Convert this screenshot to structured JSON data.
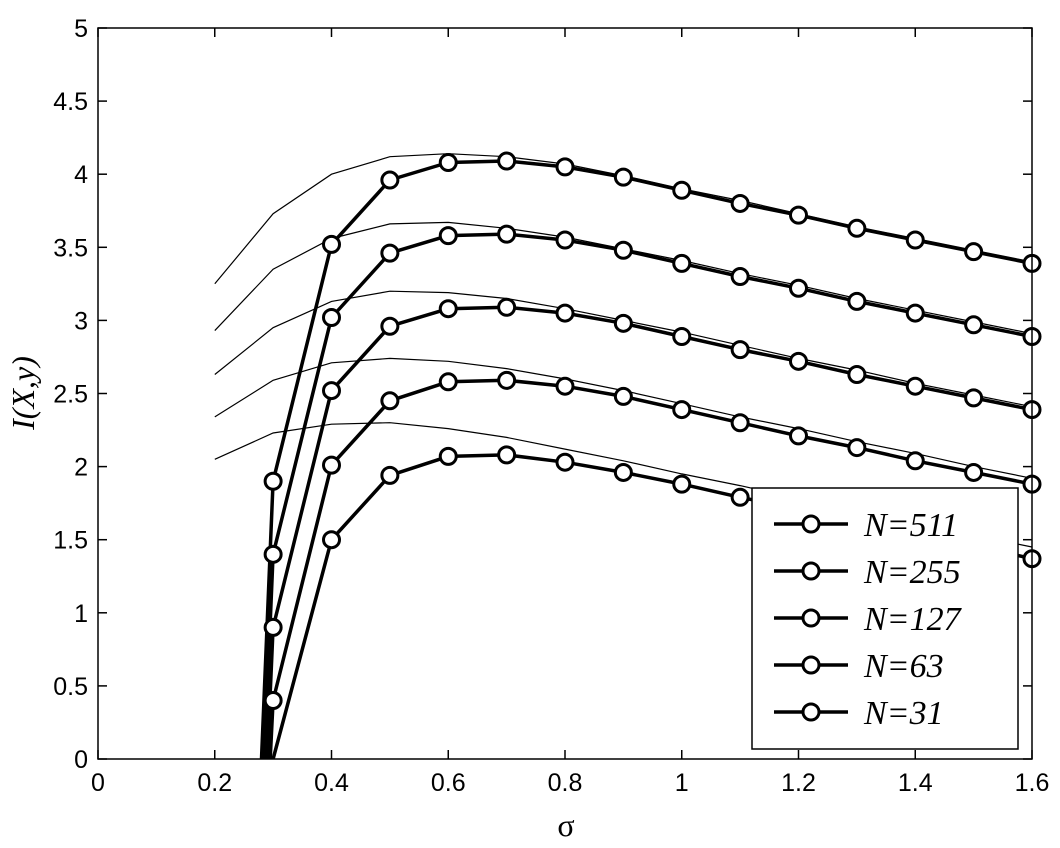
{
  "chart_data": {
    "type": "line",
    "xlabel": "σ",
    "ylabel": "I(X,y)",
    "xlim": [
      0,
      1.6
    ],
    "ylim": [
      0,
      5
    ],
    "xticks": [
      "0",
      "0.2",
      "0.4",
      "0.6",
      "0.8",
      "1",
      "1.2",
      "1.4",
      "1.6"
    ],
    "yticks": [
      "0",
      "0.5",
      "1",
      "1.5",
      "2",
      "2.5",
      "3",
      "3.5",
      "4",
      "4.5",
      "5"
    ],
    "grid": false,
    "legend_position": "bottom-right",
    "series": [
      {
        "name": "N=511",
        "style": "thick-circle-markers",
        "x": [
          0.28,
          0.3,
          0.4,
          0.5,
          0.6,
          0.7,
          0.8,
          0.9,
          1.0,
          1.1,
          1.2,
          1.3,
          1.4,
          1.5,
          1.6
        ],
        "y": [
          0.0,
          1.9,
          3.52,
          3.96,
          4.08,
          4.09,
          4.05,
          3.98,
          3.89,
          3.8,
          3.72,
          3.63,
          3.55,
          3.47,
          3.39
        ]
      },
      {
        "name": "N=255",
        "style": "thick-circle-markers",
        "x": [
          0.285,
          0.3,
          0.4,
          0.5,
          0.6,
          0.7,
          0.8,
          0.9,
          1.0,
          1.1,
          1.2,
          1.3,
          1.4,
          1.5,
          1.6
        ],
        "y": [
          0.0,
          1.4,
          3.02,
          3.46,
          3.58,
          3.59,
          3.55,
          3.48,
          3.39,
          3.3,
          3.22,
          3.13,
          3.05,
          2.97,
          2.89
        ]
      },
      {
        "name": "N=127",
        "style": "thick-circle-markers",
        "x": [
          0.29,
          0.3,
          0.4,
          0.5,
          0.6,
          0.7,
          0.8,
          0.9,
          1.0,
          1.1,
          1.2,
          1.3,
          1.4,
          1.5,
          1.6
        ],
        "y": [
          0.0,
          0.9,
          2.52,
          2.96,
          3.08,
          3.09,
          3.05,
          2.98,
          2.89,
          2.8,
          2.72,
          2.63,
          2.55,
          2.47,
          2.39
        ]
      },
      {
        "name": "N=63",
        "style": "thick-circle-markers",
        "x": [
          0.295,
          0.3,
          0.4,
          0.5,
          0.6,
          0.7,
          0.8,
          0.9,
          1.0,
          1.1,
          1.2,
          1.3,
          1.4,
          1.5,
          1.6
        ],
        "y": [
          0.0,
          0.4,
          2.01,
          2.45,
          2.58,
          2.59,
          2.55,
          2.48,
          2.39,
          2.3,
          2.21,
          2.13,
          2.04,
          1.96,
          1.88
        ]
      },
      {
        "name": "N=31",
        "style": "thick-circle-markers",
        "x": [
          0.3,
          0.4,
          0.5,
          0.6,
          0.7,
          0.8,
          0.9,
          1.0,
          1.1,
          1.2,
          1.3,
          1.4,
          1.5,
          1.6
        ],
        "y": [
          0.0,
          1.5,
          1.94,
          2.07,
          2.08,
          2.03,
          1.96,
          1.88,
          1.79,
          1.71,
          1.62,
          1.54,
          1.46,
          1.37
        ]
      },
      {
        "style": "thin-line",
        "x": [
          0.2,
          0.3,
          0.4,
          0.5,
          0.6,
          0.7,
          0.8,
          0.9,
          1.0,
          1.1,
          1.2,
          1.3,
          1.4,
          1.5,
          1.6
        ],
        "y": [
          3.25,
          3.73,
          4.0,
          4.12,
          4.14,
          4.12,
          4.07,
          3.99,
          3.9,
          3.82,
          3.73,
          3.64,
          3.56,
          3.48,
          3.4
        ]
      },
      {
        "style": "thin-line",
        "x": [
          0.2,
          0.3,
          0.4,
          0.5,
          0.6,
          0.7,
          0.8,
          0.9,
          1.0,
          1.1,
          1.2,
          1.3,
          1.4,
          1.5,
          1.6
        ],
        "y": [
          2.93,
          3.35,
          3.56,
          3.66,
          3.67,
          3.63,
          3.57,
          3.49,
          3.41,
          3.32,
          3.24,
          3.15,
          3.07,
          2.99,
          2.91
        ]
      },
      {
        "style": "thin-line",
        "x": [
          0.2,
          0.3,
          0.4,
          0.5,
          0.6,
          0.7,
          0.8,
          0.9,
          1.0,
          1.1,
          1.2,
          1.3,
          1.4,
          1.5,
          1.6
        ],
        "y": [
          2.63,
          2.95,
          3.13,
          3.2,
          3.19,
          3.15,
          3.08,
          3.0,
          2.92,
          2.83,
          2.74,
          2.66,
          2.57,
          2.49,
          2.41
        ]
      },
      {
        "style": "thin-line",
        "x": [
          0.2,
          0.3,
          0.4,
          0.5,
          0.6,
          0.7,
          0.8,
          0.9,
          1.0,
          1.1,
          1.2,
          1.3,
          1.4,
          1.5,
          1.6
        ],
        "y": [
          2.34,
          2.59,
          2.71,
          2.74,
          2.72,
          2.67,
          2.6,
          2.52,
          2.43,
          2.34,
          2.26,
          2.17,
          2.09,
          2.0,
          1.92
        ]
      },
      {
        "style": "thin-line",
        "x": [
          0.2,
          0.3,
          0.4,
          0.5,
          0.6,
          0.7,
          0.8,
          0.9,
          1.0,
          1.1,
          1.2,
          1.3,
          1.4,
          1.5,
          1.6
        ],
        "y": [
          2.05,
          2.23,
          2.29,
          2.3,
          2.26,
          2.2,
          2.12,
          2.04,
          1.95,
          1.87,
          1.78,
          1.7,
          1.61,
          1.53,
          1.45
        ]
      }
    ]
  }
}
